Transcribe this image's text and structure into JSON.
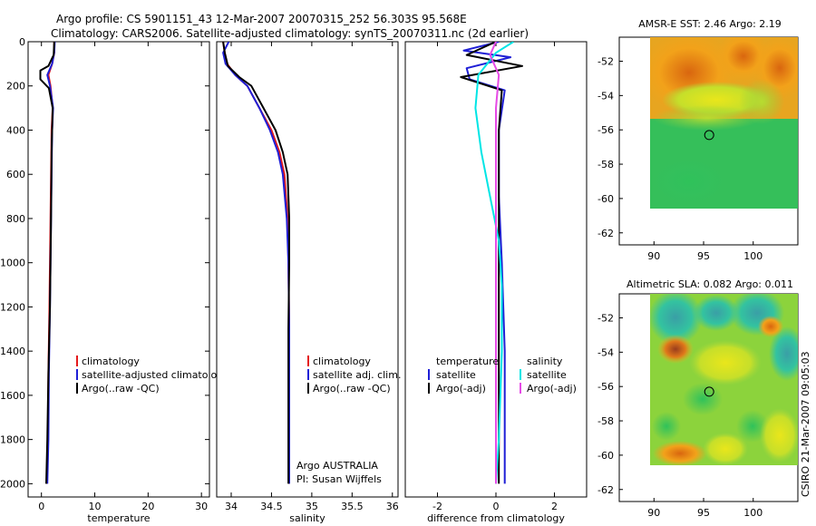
{
  "header": {
    "line1": "Argo profile: CS 5901151_43 12-Mar-2007 20070315_252 56.303S 95.568E",
    "line2": "Climatology: CARS2006. Satellite-adjusted climatology: synTS_20070311.nc (2d earlier)"
  },
  "footer": {
    "credit": "CSIRO 21-Mar-2007 09:05:03"
  },
  "chart_data": [
    {
      "type": "line",
      "id": "temperature",
      "xlabel": "temperature",
      "ylabel": "",
      "xlim": [
        -2.5,
        31.5
      ],
      "ylim": [
        2060,
        0
      ],
      "xticks": [
        0,
        10,
        20,
        30
      ],
      "yticks": [
        0,
        200,
        400,
        600,
        800,
        1000,
        1200,
        1400,
        1600,
        1800,
        2000
      ],
      "legend_position": "lower-right",
      "legend": [
        "climatology",
        "satellite-adjusted climatology",
        "Argo(..raw -QC)"
      ],
      "series": [
        {
          "name": "climatology",
          "color": "#e41a1c",
          "x": [
            2.4,
            2.4,
            2.0,
            1.3,
            1.7,
            2.1,
            1.9,
            1.8,
            1.7,
            1.6,
            1.5,
            1.3,
            1.2,
            1.0
          ],
          "y": [
            0,
            50,
            100,
            150,
            200,
            300,
            400,
            600,
            800,
            1000,
            1200,
            1500,
            1800,
            2000
          ]
        },
        {
          "name": "satellite-adjusted climatology",
          "color": "#1f1fd6",
          "x": [
            2.5,
            2.4,
            2.0,
            1.1,
            1.6,
            2.2,
            2.0,
            1.9,
            1.8,
            1.7,
            1.6,
            1.4,
            1.3,
            1.1
          ],
          "y": [
            0,
            50,
            100,
            150,
            200,
            300,
            400,
            600,
            800,
            1000,
            1200,
            1500,
            1800,
            2000
          ]
        },
        {
          "name": "Argo(..raw -QC)",
          "color": "#000000",
          "x": [
            2.4,
            2.3,
            1.3,
            -0.2,
            -0.2,
            1.4,
            2.1,
            1.9,
            1.8,
            1.7,
            1.6,
            1.3,
            1.1,
            0.9
          ],
          "y": [
            0,
            60,
            110,
            130,
            170,
            210,
            300,
            500,
            800,
            1000,
            1200,
            1500,
            1800,
            2000
          ]
        }
      ]
    },
    {
      "type": "line",
      "id": "salinity",
      "xlabel": "salinity",
      "ylabel": "",
      "xlim": [
        33.82,
        36.07
      ],
      "ylim": [
        2060,
        0
      ],
      "xticks": [
        34,
        34.5,
        35,
        35.5,
        36
      ],
      "yticks": [],
      "legend_position": "lower-right",
      "legend": [
        "climatology",
        "satellite adj. clim.",
        "Argo(..raw -QC)"
      ],
      "annotation": [
        "Argo AUSTRALIA",
        "PI: Susan Wijffels"
      ],
      "series": [
        {
          "name": "climatology",
          "color": "#e41a1c",
          "x": [
            33.9,
            33.92,
            33.95,
            34.05,
            34.2,
            34.35,
            34.5,
            34.6,
            34.66,
            34.7,
            34.71,
            34.72,
            34.72,
            34.72
          ],
          "y": [
            0,
            50,
            100,
            150,
            200,
            300,
            400,
            500,
            600,
            800,
            1000,
            1300,
            1700,
            2000
          ]
        },
        {
          "name": "satellite adj. clim.",
          "color": "#1f1fd6",
          "x": [
            33.97,
            33.9,
            33.93,
            34.05,
            34.2,
            34.35,
            34.48,
            34.58,
            34.64,
            34.69,
            34.71,
            34.72,
            34.72,
            34.72
          ],
          "y": [
            0,
            50,
            100,
            150,
            200,
            300,
            400,
            500,
            600,
            800,
            1000,
            1300,
            1700,
            2000
          ]
        },
        {
          "name": "Argo(..raw -QC)",
          "color": "#000000",
          "x": [
            33.9,
            33.92,
            33.96,
            34.1,
            34.25,
            34.4,
            34.55,
            34.64,
            34.7,
            34.72,
            34.72,
            34.71,
            34.71,
            34.71
          ],
          "y": [
            0,
            50,
            110,
            160,
            200,
            300,
            400,
            500,
            600,
            800,
            1000,
            1300,
            1700,
            2000
          ]
        }
      ]
    },
    {
      "type": "line",
      "id": "difference",
      "xlabel": "difference from climatology",
      "ylabel": "",
      "xlim": [
        -3.1,
        3.1
      ],
      "ylim": [
        2060,
        0
      ],
      "xticks": [
        -2,
        0,
        2
      ],
      "yticks": [],
      "legend_position": "lower",
      "legend_groups": [
        {
          "title": "temperature",
          "items": [
            "satellite",
            "Argo(-adj)"
          ]
        },
        {
          "title": "salinity",
          "items": [
            "satellite",
            "Argo(-adj)"
          ]
        }
      ],
      "series": [
        {
          "name": "temperature satellite",
          "color": "#1f1fd6",
          "x": [
            0.1,
            -1.1,
            0.5,
            -1.0,
            -0.9,
            0.3,
            0.1,
            0.1,
            0.2,
            0.3,
            0.3,
            0.3
          ],
          "y": [
            0,
            40,
            70,
            120,
            170,
            220,
            400,
            700,
            1000,
            1400,
            1800,
            2000
          ]
        },
        {
          "name": "temperature Argo(-adj)",
          "color": "#000000",
          "x": [
            0.0,
            -1.0,
            0.9,
            -1.2,
            0.2,
            0.1,
            0.1,
            0.1,
            0.1,
            0.1,
            0.1
          ],
          "y": [
            0,
            60,
            110,
            160,
            220,
            400,
            700,
            1000,
            1400,
            1800,
            2000
          ]
        },
        {
          "name": "salinity satellite",
          "color": "#00e5e5",
          "x": [
            0.6,
            0.0,
            -0.6,
            -0.7,
            -0.5,
            -0.2,
            0.1,
            0.2,
            0.2,
            0.1,
            0.0
          ],
          "y": [
            0,
            50,
            150,
            300,
            500,
            700,
            900,
            1100,
            1400,
            1800,
            2000
          ]
        },
        {
          "name": "salinity Argo(-adj)",
          "color": "#e64ae6",
          "x": [
            0.0,
            -0.2,
            0.1,
            0.0,
            0.0,
            0.0,
            0.0,
            0.0
          ],
          "y": [
            0,
            60,
            150,
            300,
            600,
            1000,
            1500,
            2000
          ]
        }
      ]
    },
    {
      "type": "heatmap",
      "id": "sst",
      "title": "AMSR-E SST: 2.46 Argo: 2.19",
      "xlim": [
        86.5,
        104.5
      ],
      "ylim": [
        -62.7,
        -50.6
      ],
      "xticks": [
        90,
        95,
        100
      ],
      "yticks": [
        -52,
        -54,
        -56,
        -58,
        -60,
        -62
      ],
      "grid": false,
      "marker": {
        "lon": 95.568,
        "lat": -56.303
      }
    },
    {
      "type": "heatmap",
      "id": "sla",
      "title": "Altimetric SLA: 0.082 Argo: 0.011",
      "xlim": [
        86.5,
        104.5
      ],
      "ylim": [
        -62.7,
        -50.6
      ],
      "xticks": [
        90,
        95,
        100
      ],
      "yticks": [
        -52,
        -54,
        -56,
        -58,
        -60,
        -62
      ],
      "grid": false,
      "marker": {
        "lon": 95.568,
        "lat": -56.303
      }
    }
  ]
}
